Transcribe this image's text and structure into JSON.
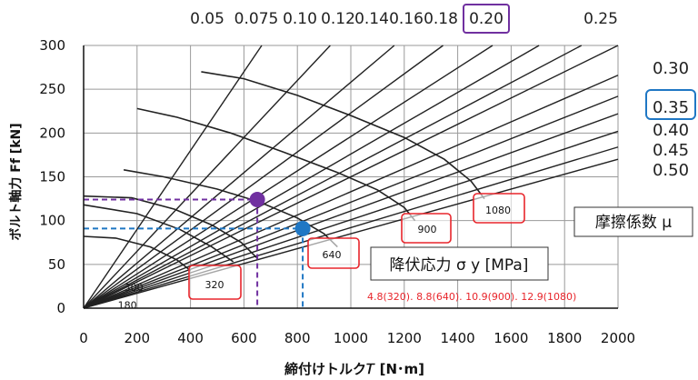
{
  "chart_data": {
    "type": "line",
    "xlabel": "締付けトルク𝑇  [N･m]",
    "ylabel": "ボルト軸力 Ff  [kN]",
    "xlim": [
      0,
      2000
    ],
    "ylim": [
      0,
      300
    ],
    "x_ticks": [
      "0",
      "200",
      "400",
      "600",
      "800",
      "1000",
      "1200",
      "1400",
      "1600",
      "1800",
      "2000"
    ],
    "y_ticks": [
      "0",
      "50",
      "100",
      "150",
      "200",
      "250",
      "300"
    ],
    "grid": true,
    "friction_lines": [
      {
        "mu": "0.05",
        "slope_kN_per_Nm": 0.45
      },
      {
        "mu": "0.075",
        "slope_kN_per_Nm": 0.325
      },
      {
        "mu": "0.10",
        "slope_kN_per_Nm": 0.258
      },
      {
        "mu": "0.12",
        "slope_kN_per_Nm": 0.223
      },
      {
        "mu": "0.14",
        "slope_kN_per_Nm": 0.196
      },
      {
        "mu": "0.16",
        "slope_kN_per_Nm": 0.176
      },
      {
        "mu": "0.18",
        "slope_kN_per_Nm": 0.161
      },
      {
        "mu": "0.20",
        "slope_kN_per_Nm": 0.15
      },
      {
        "mu": "0.25",
        "slope_kN_per_Nm": 0.133
      },
      {
        "mu": "0.30",
        "slope_kN_per_Nm": 0.121
      },
      {
        "mu": "0.35",
        "slope_kN_per_Nm": 0.111
      },
      {
        "mu": "0.40",
        "slope_kN_per_Nm": 0.101
      },
      {
        "mu": "0.45",
        "slope_kN_per_Nm": 0.092
      },
      {
        "mu": "0.50",
        "slope_kN_per_Nm": 0.085
      }
    ],
    "yield_curves": [
      {
        "label": "180",
        "points": [
          [
            0,
            82
          ],
          [
            120,
            80
          ],
          [
            250,
            70
          ],
          [
            350,
            55
          ],
          [
            400,
            43
          ]
        ]
      },
      {
        "label": "300",
        "points": [
          [
            0,
            118
          ],
          [
            200,
            108
          ],
          [
            360,
            90
          ],
          [
            480,
            70
          ],
          [
            560,
            53
          ]
        ]
      },
      {
        "label": "320",
        "points": [
          [
            0,
            128
          ],
          [
            180,
            126
          ],
          [
            340,
            113
          ],
          [
            480,
            95
          ],
          [
            590,
            75
          ],
          [
            650,
            57
          ]
        ]
      },
      {
        "label": "640",
        "points": [
          [
            150,
            158
          ],
          [
            300,
            150
          ],
          [
            500,
            136
          ],
          [
            660,
            121
          ],
          [
            800,
            103
          ],
          [
            900,
            85
          ],
          [
            950,
            70
          ]
        ]
      },
      {
        "label": "900",
        "points": [
          [
            200,
            228
          ],
          [
            350,
            218
          ],
          [
            550,
            200
          ],
          [
            750,
            178
          ],
          [
            950,
            155
          ],
          [
            1100,
            135
          ],
          [
            1200,
            115
          ],
          [
            1240,
            100
          ]
        ]
      },
      {
        "label": "1080",
        "points": [
          [
            440,
            270
          ],
          [
            600,
            262
          ],
          [
            800,
            243
          ],
          [
            1000,
            220
          ],
          [
            1200,
            195
          ],
          [
            1350,
            170
          ],
          [
            1450,
            145
          ],
          [
            1500,
            125
          ]
        ]
      }
    ],
    "markers": [
      {
        "color": "#7030a0",
        "T": 650,
        "F": 124
      },
      {
        "color": "#1f77c4",
        "T": 820,
        "F": 91
      }
    ],
    "mu_labels_top": [
      "0.05",
      "0.075",
      "0.10",
      "0.12",
      "0.14",
      "0.16",
      "0.18",
      "0.20",
      "0.25"
    ],
    "mu_labels_right": [
      "0.30",
      "0.35",
      "0.40",
      "0.45",
      "0.50"
    ],
    "highlight_mu_top": "0.20",
    "highlight_mu_right": "0.35",
    "yield_box_labels": [
      "320",
      "640",
      "900",
      "1080"
    ],
    "legend_friction": "摩擦係数 μ",
    "legend_yield": "降伏応力 σ y [MPa]",
    "grade_note": "4.8(320). 8.8(640). 10.9(900). 12.9(1080)",
    "colors": {
      "purple": "#7030a0",
      "blue": "#1f77c4",
      "red": "#e8252b",
      "line": "#222222",
      "grid": "#9a9a9a"
    }
  }
}
